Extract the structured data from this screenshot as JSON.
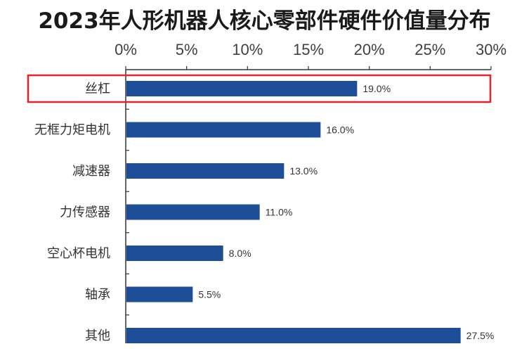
{
  "chart_data": {
    "type": "bar",
    "orientation": "horizontal",
    "title": "2023年人形机器人核心零部件硬件价值量分布",
    "categories": [
      "丝杠",
      "无框力矩电机",
      "减速器",
      "力传感器",
      "空心杯电机",
      "轴承",
      "其他"
    ],
    "values": [
      19.0,
      16.0,
      13.0,
      11.0,
      8.0,
      5.5,
      27.5
    ],
    "data_labels": [
      "19.0%",
      "16.0%",
      "13.0%",
      "11.0%",
      "8.0%",
      "5.5%",
      "27.5%"
    ],
    "xlim": [
      0,
      30
    ],
    "x_ticks": [
      0,
      5,
      10,
      15,
      20,
      25,
      30
    ],
    "x_tick_labels": [
      "0%",
      "5%",
      "10%",
      "15%",
      "20%",
      "25%",
      "30%"
    ],
    "x_axis_position": "top",
    "grid": false,
    "highlight": {
      "category": "丝杠",
      "color": "#e8212b"
    },
    "colors": {
      "bar": "#1f4e99",
      "axis": "#333333"
    }
  }
}
